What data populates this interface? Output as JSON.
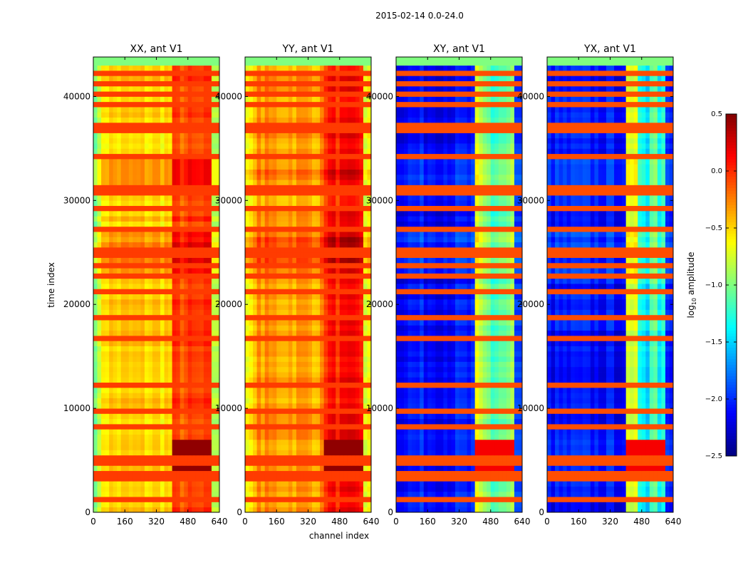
{
  "chart_data": {
    "type": "heatmap",
    "title": "2015-02-14 0.0-24.0",
    "xlabel": "channel index",
    "ylabel": "time index",
    "xlim": [
      0,
      640
    ],
    "ylim": [
      0,
      43800
    ],
    "xticks": [
      0,
      160,
      320,
      480,
      640
    ],
    "yticks": [
      0,
      10000,
      20000,
      30000,
      40000
    ],
    "colorbar": {
      "label": "log10 amplitude",
      "label_main": "log",
      "label_sub": "10",
      "label_rest": " amplitude",
      "colormap": "jet",
      "range": [
        -2.5,
        0.5
      ],
      "ticks": [
        "0.5",
        "0.0",
        "−0.5",
        "−1.0",
        "−1.5",
        "−2.0",
        "−2.5"
      ],
      "tick_values": [
        0.5,
        0.0,
        -0.5,
        -1.0,
        -1.5,
        -2.0,
        -2.5
      ]
    },
    "panels": [
      {
        "title": "XX, ant V1",
        "bands": [
          [
            0,
            40,
            -0.9
          ],
          [
            40,
            400,
            -0.5
          ],
          [
            400,
            600,
            -0.1
          ],
          [
            600,
            640,
            -0.8
          ]
        ],
        "flag_value": -0.05,
        "kind": "auto"
      },
      {
        "title": "YY, ant V1",
        "bands": [
          [
            0,
            30,
            -0.7
          ],
          [
            30,
            400,
            -0.35
          ],
          [
            400,
            600,
            0.05
          ],
          [
            600,
            640,
            -0.7
          ]
        ],
        "flag_value": -0.05,
        "kind": "auto"
      },
      {
        "title": "XY, ant V1",
        "bands": [
          [
            0,
            400,
            -2.1
          ],
          [
            400,
            600,
            -1.1
          ],
          [
            600,
            640,
            -2.0
          ]
        ],
        "flag_value": -0.1,
        "kind": "cross"
      },
      {
        "title": "YX, ant V1",
        "bands": [
          [
            0,
            400,
            -2.1
          ],
          [
            400,
            600,
            -1.1
          ],
          [
            600,
            640,
            -2.0
          ]
        ],
        "flag_value": -0.1,
        "kind": "cross"
      }
    ],
    "flag_rows": [
      1000,
      3300,
      3700,
      4600,
      4900,
      5200,
      8000,
      9500,
      12300,
      16500,
      18900,
      21000,
      22500,
      23700,
      24800,
      25300,
      27400,
      29000,
      30600,
      31200,
      34000,
      36600,
      37100,
      39000,
      40100,
      41200,
      42100,
      43000
    ],
    "bright_bands": [
      [
        23000,
        27000,
        0.2
      ],
      [
        31000,
        34000,
        0.1
      ]
    ],
    "hot_region": {
      "time": [
        3500,
        7000
      ],
      "channels": [
        400,
        600
      ],
      "value": 0.35
    }
  }
}
